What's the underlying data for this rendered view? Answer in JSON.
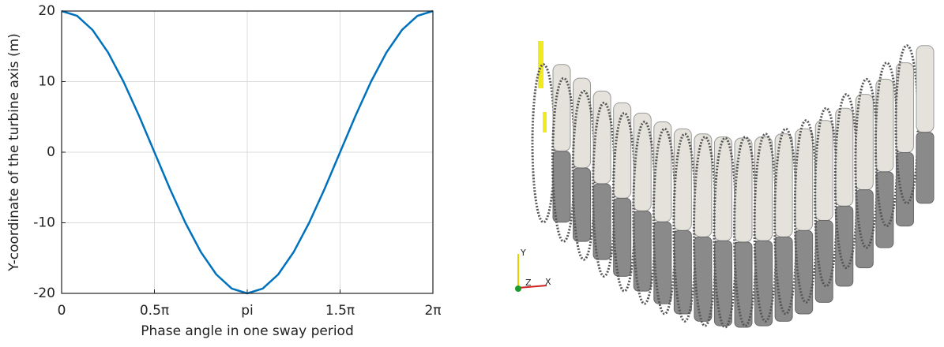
{
  "chart_data": {
    "type": "line",
    "xlabel": "Phase angle in one sway period",
    "ylabel": "Y-coordinate of the turbine axis (m)",
    "x": [
      0,
      0.2618,
      0.5236,
      0.7854,
      1.0472,
      1.309,
      1.5708,
      1.8326,
      2.0944,
      2.3562,
      2.618,
      2.8798,
      3.1416,
      3.4034,
      3.6652,
      3.927,
      4.1888,
      4.4506,
      4.7124,
      4.9742,
      5.236,
      5.4978,
      5.7596,
      6.0214,
      6.2832
    ],
    "series": [
      {
        "color": "#0072bd",
        "values": [
          20,
          19.32,
          17.32,
          14.14,
          10,
          5.18,
          0,
          -5.18,
          -10,
          -14.14,
          -17.32,
          -19.32,
          -20,
          -19.32,
          -17.32,
          -14.14,
          -10,
          -5.18,
          0,
          5.18,
          10,
          14.14,
          17.32,
          19.32,
          20
        ]
      }
    ],
    "xlim": [
      0,
      6.2832
    ],
    "xticks": [
      0,
      {
        "value": 1.5708,
        "label": "0.5π"
      },
      {
        "value": 3.1416,
        "label": "pi"
      },
      {
        "value": 4.7124,
        "label": "1.5π"
      },
      {
        "value": 6.2832,
        "label": "2π"
      }
    ],
    "ylim": [
      -20,
      20
    ],
    "yticks": [
      -20,
      -10,
      0,
      10,
      20
    ],
    "grid": true
  },
  "render": {
    "axes_labels": [
      "Y",
      "Z",
      "X"
    ]
  }
}
